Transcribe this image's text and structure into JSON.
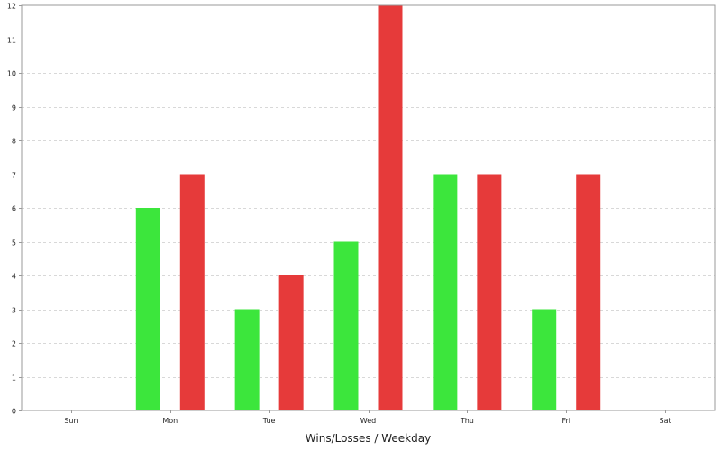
{
  "chart_data": {
    "type": "bar",
    "categories": [
      "Sun",
      "Mon",
      "Tue",
      "Wed",
      "Thu",
      "Fri",
      "Sat"
    ],
    "series": [
      {
        "values": [
          0,
          6,
          3,
          5,
          7,
          3,
          0
        ],
        "color": "#3ce63c"
      },
      {
        "values": [
          0,
          7,
          4,
          12,
          7,
          7,
          0
        ],
        "color": "#e63a3a"
      }
    ],
    "title": "",
    "xlabel": "Wins/Losses / Weekday",
    "ylabel": "",
    "ylim": [
      0,
      12
    ],
    "yticks": [
      0,
      1,
      2,
      3,
      4,
      5,
      6,
      7,
      8,
      9,
      10,
      11,
      12
    ],
    "grid": true,
    "legend": false
  }
}
